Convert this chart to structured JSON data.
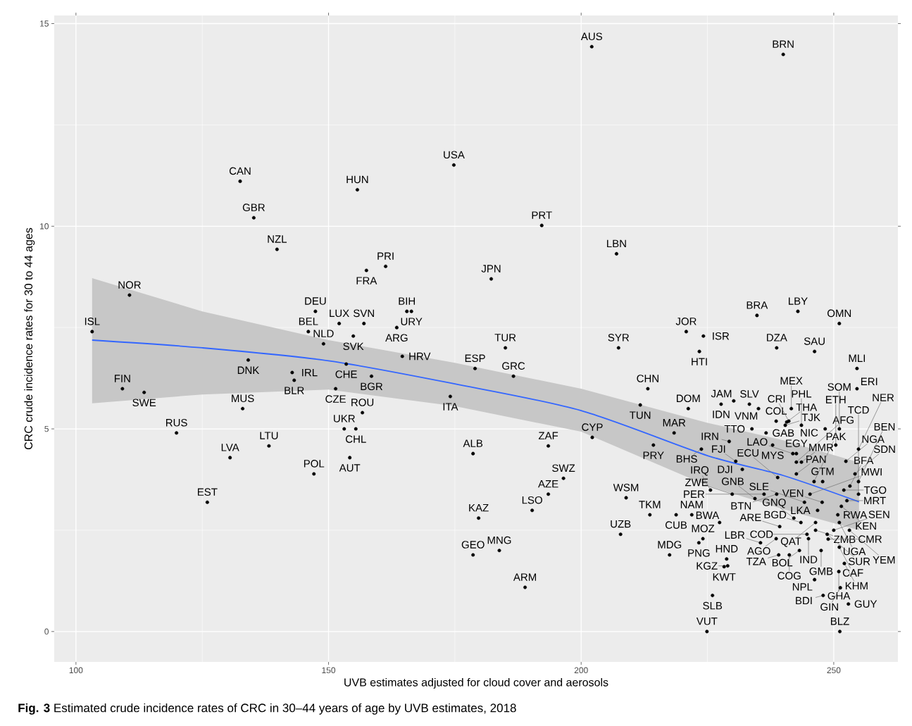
{
  "chart_data": {
    "type": "scatter",
    "xlabel": "UVB estimates adjusted for cloud cover and aerosols",
    "ylabel": "CRC crude incidence rates for 30 to 44 ages",
    "xlim": [
      95.7,
      262.7
    ],
    "ylim": [
      -0.75,
      15.2
    ],
    "xticks": [
      100,
      150,
      200,
      250
    ],
    "yticks": [
      0,
      5,
      10,
      15
    ],
    "grid": true,
    "series": [
      {
        "color": "#000000",
        "marker": "circle",
        "x": [
          202.1,
          240.0,
          174.8,
          132.5,
          155.7,
          135.2,
          192.2,
          139.8,
          207.0,
          161.3,
          157.5,
          182.2,
          110.6,
          147.4,
          165.5,
          166.4,
          152.1,
          157.0,
          163.5,
          146.0,
          103.2,
          154.9,
          149.0,
          164.6,
          185.0,
          179.0,
          186.6,
          134.1,
          153.5,
          158.5,
          142.8,
          143.2,
          109.2,
          151.4,
          174.1,
          113.5,
          133.0,
          156.7,
          153.1,
          155.4,
          119.9,
          138.2,
          130.5,
          154.2,
          147.1,
          126.0,
          178.6,
          193.5,
          202.2,
          196.5,
          193.5,
          190.3,
          179.7,
          183.8,
          178.6,
          188.9,
          213.6,
          208.9,
          225.6,
          207.8,
          218.8,
          221.9,
          227.4,
          224.1,
          223.3,
          217.5,
          224.9,
          226.0,
          228.8,
          228.3,
          229.0,
          235.5,
          243.5,
          242.1,
          239.3,
          238.6,
          234.4,
          244.2,
          246.8,
          236.2,
          229.9,
          238.7,
          238.9,
          242.6,
          242.6,
          243.6,
          245.3,
          247.7,
          230.6,
          231.9,
          229.3,
          237.9,
          241.9,
          242.6,
          214.3,
          218.4,
          223.8,
          211.7,
          213.2,
          221.2,
          227.7,
          230.2,
          233.3,
          235.1,
          238.6,
          240.4,
          240.7,
          241.1,
          241.6,
          236.6,
          233.8,
          243.6,
          246.1,
          248.3,
          251.1,
          252.4,
          250.4,
          254.6,
          254.6,
          254.9,
          254.2,
          253.2,
          254.9,
          254.9,
          252.6,
          247.8,
          252.0,
          250.8,
          251.5,
          252.9,
          251.2,
          251.0,
          251.3,
          247.9,
          246.2,
          247.5,
          248.9,
          252.1,
          251.1,
          253.1,
          251.1,
          250.0,
          248.7,
          246.4,
          245.0,
          244.7,
          246.4,
          241.2,
          243.2,
          239.1,
          220.8,
          224.2,
          223.4,
          234.8,
          242.9,
          251.1,
          238.7,
          246.2,
          207.4
        ],
        "values": [
          14.43,
          14.24,
          11.51,
          11.11,
          10.9,
          10.21,
          10.02,
          9.43,
          9.32,
          9.01,
          8.91,
          8.7,
          8.3,
          7.9,
          7.9,
          7.9,
          7.6,
          7.6,
          7.5,
          7.4,
          7.4,
          7.29,
          7.1,
          6.79,
          7.0,
          6.49,
          6.3,
          6.7,
          6.6,
          6.3,
          6.39,
          6.2,
          5.99,
          5.99,
          5.8,
          5.9,
          5.5,
          5.4,
          5.0,
          5.0,
          4.9,
          4.58,
          4.29,
          4.29,
          3.89,
          3.19,
          4.39,
          4.58,
          4.79,
          3.78,
          3.39,
          2.99,
          2.8,
          2.0,
          1.89,
          1.09,
          2.88,
          3.3,
          3.49,
          2.4,
          2.88,
          2.88,
          2.69,
          2.29,
          2.19,
          1.89,
          0.0,
          0.89,
          1.79,
          1.6,
          1.62,
          2.19,
          2.69,
          2.8,
          2.59,
          2.29,
          3.28,
          3.19,
          2.99,
          3.39,
          3.39,
          3.39,
          3.8,
          3.89,
          4.18,
          4.18,
          3.39,
          3.19,
          4.2,
          4.0,
          4.69,
          4.6,
          4.39,
          4.39,
          4.6,
          4.9,
          4.5,
          5.59,
          5.99,
          5.5,
          5.61,
          5.69,
          5.61,
          5.5,
          5.19,
          5.09,
          5.17,
          5.19,
          5.5,
          4.9,
          5.0,
          5.09,
          3.7,
          5.0,
          5.0,
          4.2,
          4.6,
          5.99,
          6.49,
          4.5,
          3.89,
          3.59,
          3.7,
          3.39,
          3.23,
          3.7,
          3.49,
          2.88,
          3.09,
          0.68,
          0.0,
          1.48,
          1.08,
          0.89,
          1.28,
          2.0,
          2.28,
          1.68,
          2.08,
          2.5,
          2.69,
          2.5,
          2.4,
          2.5,
          2.29,
          2.4,
          2.69,
          1.89,
          2.0,
          1.89,
          7.4,
          7.29,
          6.91,
          7.8,
          7.9,
          7.6,
          7.0,
          6.91,
          7.0
        ]
      },
      {
        "type": "line",
        "color": "#3366ff",
        "x": [
          103.2,
          125,
          150,
          175,
          200,
          225,
          240,
          255
        ],
        "values": [
          7.19,
          7.0,
          6.68,
          6.11,
          5.45,
          4.34,
          3.85,
          3.2
        ],
        "lower": [
          5.63,
          5.85,
          5.97,
          5.56,
          4.93,
          3.6,
          3.02,
          2.5
        ],
        "upper": [
          8.72,
          7.9,
          7.19,
          6.63,
          5.99,
          5.15,
          4.72,
          4.17
        ]
      }
    ],
    "annotations": [
      {
        "text": "AUS",
        "x": 202.1,
        "y": 14.43
      },
      {
        "text": "BRN",
        "x": 240.0,
        "y": 14.24
      },
      {
        "text": "USA",
        "x": 174.8,
        "y": 11.51
      },
      {
        "text": "CAN",
        "x": 132.5,
        "y": 11.11
      },
      {
        "text": "HUN",
        "x": 155.7,
        "y": 10.9
      },
      {
        "text": "GBR",
        "x": 135.2,
        "y": 10.21
      },
      {
        "text": "PRT",
        "x": 192.2,
        "y": 10.02
      },
      {
        "text": "NZL",
        "x": 139.8,
        "y": 9.43
      },
      {
        "text": "LBN",
        "x": 207.0,
        "y": 9.32
      },
      {
        "text": "PRI",
        "x": 161.3,
        "y": 9.01
      },
      {
        "text": "FRA",
        "x": 157.5,
        "y": 8.91
      },
      {
        "text": "JPN",
        "x": 182.2,
        "y": 8.7
      },
      {
        "text": "NOR",
        "x": 110.6,
        "y": 8.3
      },
      {
        "text": "DEU",
        "x": 147.4,
        "y": 7.9
      },
      {
        "text": "BIH",
        "x": 165.5,
        "y": 7.9
      },
      {
        "text": "URY",
        "x": 166.4,
        "y": 7.9
      },
      {
        "text": "LUX",
        "x": 152.1,
        "y": 7.6
      },
      {
        "text": "SVN",
        "x": 157.0,
        "y": 7.6
      },
      {
        "text": "ARG",
        "x": 163.5,
        "y": 7.5
      },
      {
        "text": "BEL",
        "x": 146.0,
        "y": 7.4
      },
      {
        "text": "ISL",
        "x": 103.2,
        "y": 7.4
      },
      {
        "text": "SVK",
        "x": 154.9,
        "y": 7.29
      },
      {
        "text": "NLD",
        "x": 149.0,
        "y": 7.1
      },
      {
        "text": "HRV",
        "x": 164.6,
        "y": 6.79
      },
      {
        "text": "TUR",
        "x": 185.0,
        "y": 7.0
      },
      {
        "text": "ESP",
        "x": 179.0,
        "y": 6.49
      },
      {
        "text": "GRC",
        "x": 186.6,
        "y": 6.3
      },
      {
        "text": "DNK",
        "x": 134.1,
        "y": 6.7
      },
      {
        "text": "CHE",
        "x": 153.5,
        "y": 6.6
      },
      {
        "text": "BGR",
        "x": 158.5,
        "y": 6.3
      },
      {
        "text": "IRL",
        "x": 142.8,
        "y": 6.39
      },
      {
        "text": "BLR",
        "x": 143.2,
        "y": 6.2
      },
      {
        "text": "FIN",
        "x": 109.2,
        "y": 5.99
      },
      {
        "text": "CZE",
        "x": 151.4,
        "y": 5.99
      },
      {
        "text": "ITA",
        "x": 174.1,
        "y": 5.8
      },
      {
        "text": "SWE",
        "x": 113.5,
        "y": 5.9
      },
      {
        "text": "MUS",
        "x": 133.0,
        "y": 5.5
      },
      {
        "text": "ROU",
        "x": 156.7,
        "y": 5.4
      },
      {
        "text": "UKR",
        "x": 153.1,
        "y": 5.0
      },
      {
        "text": "CHL",
        "x": 155.4,
        "y": 5.0
      },
      {
        "text": "RUS",
        "x": 119.9,
        "y": 4.9
      },
      {
        "text": "LTU",
        "x": 138.2,
        "y": 4.58
      },
      {
        "text": "LVA",
        "x": 130.5,
        "y": 4.29
      },
      {
        "text": "AUT",
        "x": 154.2,
        "y": 4.29
      },
      {
        "text": "POL",
        "x": 147.1,
        "y": 3.89
      },
      {
        "text": "EST",
        "x": 126.0,
        "y": 3.19
      },
      {
        "text": "ALB",
        "x": 178.6,
        "y": 4.39
      },
      {
        "text": "ZAF",
        "x": 193.5,
        "y": 4.58
      },
      {
        "text": "CYP",
        "x": 202.2,
        "y": 4.79
      },
      {
        "text": "SWZ",
        "x": 196.5,
        "y": 3.78
      },
      {
        "text": "AZE",
        "x": 193.5,
        "y": 3.39
      },
      {
        "text": "LSO",
        "x": 190.3,
        "y": 2.99
      },
      {
        "text": "KAZ",
        "x": 179.7,
        "y": 2.8
      },
      {
        "text": "MNG",
        "x": 183.8,
        "y": 2.0
      },
      {
        "text": "GEO",
        "x": 178.6,
        "y": 1.89
      },
      {
        "text": "ARM",
        "x": 188.9,
        "y": 1.09
      },
      {
        "text": "TKM",
        "x": 213.6,
        "y": 2.88
      },
      {
        "text": "WSM",
        "x": 208.9,
        "y": 3.3
      },
      {
        "text": "IRQ",
        "x": 225.6,
        "y": 3.49
      },
      {
        "text": "UZB",
        "x": 207.8,
        "y": 2.4
      },
      {
        "text": "CUB",
        "x": 218.8,
        "y": 2.88
      },
      {
        "text": "NAM",
        "x": 221.9,
        "y": 2.88
      },
      {
        "text": "BWA",
        "x": 227.4,
        "y": 2.69
      },
      {
        "text": "MOZ",
        "x": 224.1,
        "y": 2.29
      },
      {
        "text": "PNG",
        "x": 223.3,
        "y": 2.19
      },
      {
        "text": "MDG",
        "x": 217.5,
        "y": 1.89
      },
      {
        "text": "VUT",
        "x": 224.9,
        "y": 0.0
      },
      {
        "text": "SLB",
        "x": 226.0,
        "y": 0.89
      },
      {
        "text": "HND",
        "x": 228.8,
        "y": 1.79
      },
      {
        "text": "KWT",
        "x": 228.3,
        "y": 1.6
      },
      {
        "text": "KGZ",
        "x": 229.0,
        "y": 1.62
      },
      {
        "text": "LBR",
        "x": 235.5,
        "y": 2.19
      },
      {
        "text": "BGD",
        "x": 243.5,
        "y": 2.69
      },
      {
        "text": "GNQ",
        "x": 242.1,
        "y": 2.8
      },
      {
        "text": "ARE",
        "x": 239.3,
        "y": 2.59
      },
      {
        "text": "AGO",
        "x": 238.6,
        "y": 2.29
      },
      {
        "text": "GNB",
        "x": 234.4,
        "y": 3.28
      },
      {
        "text": "SLE",
        "x": 244.2,
        "y": 3.19
      },
      {
        "text": "LKA",
        "x": 246.8,
        "y": 2.99
      },
      {
        "text": "PER",
        "x": 236.2,
        "y": 3.39
      },
      {
        "text": "ZWE",
        "x": 229.9,
        "y": 3.39
      },
      {
        "text": "BTN",
        "x": 238.7,
        "y": 3.39
      },
      {
        "text": "ECU",
        "x": 238.9,
        "y": 3.8
      },
      {
        "text": "PAN",
        "x": 242.6,
        "y": 3.89
      },
      {
        "text": "AFG",
        "x": 242.6,
        "y": 4.18
      },
      {
        "text": "MMR",
        "x": 243.6,
        "y": 4.18
      },
      {
        "text": "MWI",
        "x": 245.3,
        "y": 3.39
      },
      {
        "text": "VEN",
        "x": 247.7,
        "y": 3.19
      },
      {
        "text": "FJI",
        "x": 230.6,
        "y": 4.2
      },
      {
        "text": "DJI",
        "x": 231.9,
        "y": 4.0
      },
      {
        "text": "IRN",
        "x": 229.3,
        "y": 4.69
      },
      {
        "text": "MYS",
        "x": 237.9,
        "y": 4.6
      },
      {
        "text": "LAO",
        "x": 241.9,
        "y": 4.39
      },
      {
        "text": "EGY",
        "x": 242.6,
        "y": 4.39
      },
      {
        "text": "PRY",
        "x": 214.3,
        "y": 4.6
      },
      {
        "text": "MAR",
        "x": 218.4,
        "y": 4.9
      },
      {
        "text": "BHS",
        "x": 223.8,
        "y": 4.5
      },
      {
        "text": "TUN",
        "x": 211.7,
        "y": 5.59
      },
      {
        "text": "CHN",
        "x": 213.2,
        "y": 5.99
      },
      {
        "text": "DOM",
        "x": 221.2,
        "y": 5.5
      },
      {
        "text": "IDN",
        "x": 227.7,
        "y": 5.61
      },
      {
        "text": "JAM",
        "x": 230.2,
        "y": 5.69
      },
      {
        "text": "SLV",
        "x": 233.3,
        "y": 5.61
      },
      {
        "text": "VNM",
        "x": 235.1,
        "y": 5.5
      },
      {
        "text": "COL",
        "x": 238.6,
        "y": 5.19
      },
      {
        "text": "TJK",
        "x": 240.4,
        "y": 5.09
      },
      {
        "text": "THA",
        "x": 240.7,
        "y": 5.17
      },
      {
        "text": "CRI",
        "x": 241.1,
        "y": 5.19
      },
      {
        "text": "MEX",
        "x": 241.6,
        "y": 5.5
      },
      {
        "text": "GAB",
        "x": 236.6,
        "y": 4.9
      },
      {
        "text": "TTO",
        "x": 233.8,
        "y": 5.0
      },
      {
        "text": "PHL",
        "x": 243.6,
        "y": 5.09
      },
      {
        "text": "PAK",
        "x": 246.1,
        "y": 3.7
      },
      {
        "text": "NIC",
        "x": 248.3,
        "y": 5.0
      },
      {
        "text": "SOM",
        "x": 251.1,
        "y": 5.0
      },
      {
        "text": "NGA",
        "x": 252.4,
        "y": 4.2
      },
      {
        "text": "ETH",
        "x": 250.4,
        "y": 4.6
      },
      {
        "text": "ERI",
        "x": 254.6,
        "y": 5.99
      },
      {
        "text": "MLI",
        "x": 254.6,
        "y": 6.49
      },
      {
        "text": "NER",
        "x": 254.9,
        "y": 4.5
      },
      {
        "text": "SDN",
        "x": 254.2,
        "y": 3.89
      },
      {
        "text": "BFA",
        "x": 253.2,
        "y": 3.59
      },
      {
        "text": "BEN",
        "x": 254.9,
        "y": 3.7
      },
      {
        "text": "TCD",
        "x": 254.9,
        "y": 3.39
      },
      {
        "text": "MRT",
        "x": 252.6,
        "y": 3.23
      },
      {
        "text": "GTM",
        "x": 247.8,
        "y": 3.7
      },
      {
        "text": "TGO",
        "x": 252.0,
        "y": 3.49
      },
      {
        "text": "RWA",
        "x": 250.8,
        "y": 2.88
      },
      {
        "text": "KEN",
        "x": 251.5,
        "y": 3.09
      },
      {
        "text": "GUY",
        "x": 252.9,
        "y": 0.68
      },
      {
        "text": "BLZ",
        "x": 251.2,
        "y": 0.0
      },
      {
        "text": "GHA",
        "x": 251.0,
        "y": 1.48
      },
      {
        "text": "GIN",
        "x": 251.3,
        "y": 1.08
      },
      {
        "text": "BDI",
        "x": 247.9,
        "y": 0.89
      },
      {
        "text": "NPL",
        "x": 246.2,
        "y": 1.28
      },
      {
        "text": "GMB",
        "x": 247.5,
        "y": 2.0
      },
      {
        "text": "CMR",
        "x": 248.9,
        "y": 2.28
      },
      {
        "text": "KHM",
        "x": 252.1,
        "y": 1.68
      },
      {
        "text": "CAF",
        "x": 251.1,
        "y": 2.08
      },
      {
        "text": "YEM",
        "x": 253.1,
        "y": 2.5
      },
      {
        "text": "UGA",
        "x": 251.1,
        "y": 2.69
      },
      {
        "text": "SEN",
        "x": 250.0,
        "y": 2.5
      },
      {
        "text": "SUR",
        "x": 248.7,
        "y": 2.4
      },
      {
        "text": "ZMB",
        "x": 246.4,
        "y": 2.5
      },
      {
        "text": "IND",
        "x": 245.0,
        "y": 2.29
      },
      {
        "text": "COD",
        "x": 244.7,
        "y": 2.4
      },
      {
        "text": "QAT",
        "x": 246.4,
        "y": 2.69
      },
      {
        "text": "COG",
        "x": 241.2,
        "y": 1.89
      },
      {
        "text": "BOL",
        "x": 243.2,
        "y": 2.0
      },
      {
        "text": "TZA",
        "x": 239.1,
        "y": 1.89
      },
      {
        "text": "JOR",
        "x": 220.8,
        "y": 7.4
      },
      {
        "text": "ISR",
        "x": 224.2,
        "y": 7.29
      },
      {
        "text": "HTI",
        "x": 223.4,
        "y": 6.91
      },
      {
        "text": "BRA",
        "x": 234.8,
        "y": 7.8
      },
      {
        "text": "LBY",
        "x": 242.9,
        "y": 7.9
      },
      {
        "text": "OMN",
        "x": 251.1,
        "y": 7.6
      },
      {
        "text": "DZA",
        "x": 238.7,
        "y": 7.0
      },
      {
        "text": "SAU",
        "x": 246.2,
        "y": 6.91
      },
      {
        "text": "SYR",
        "x": 207.4,
        "y": 7.0
      },
      "**Fig. 3** Estimated crude incidence rates of CRC in 30–44 years of age by UVB estimates, 2018"
    ]
  }
}
